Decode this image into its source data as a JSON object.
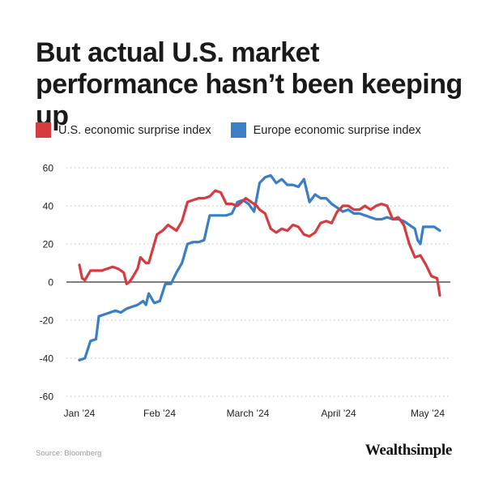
{
  "title": "But actual U.S. market performance hasn’t been keeping up",
  "source": "Source: Bloomberg",
  "brand": "Wealthsimple",
  "colors": {
    "us": "#d63b3f",
    "europe": "#3a7ec3",
    "grid": "#bdbdbd",
    "zero": "#333333"
  },
  "legend": [
    {
      "label": "U.S. economic surprise index",
      "color": "#d63b3f"
    },
    {
      "label": "Europe economic surprise index",
      "color": "#3a7ec3"
    }
  ],
  "chart_data": {
    "type": "line",
    "title": "But actual U.S. market performance hasn’t been keeping up",
    "xlabel": "",
    "ylabel": "",
    "x_ticks": [
      "Jan ’24",
      "Feb ’24",
      "March ’24",
      "April ’24",
      "May ’24"
    ],
    "x_tick_days": [
      0,
      31,
      60,
      91,
      121
    ],
    "xlim": [
      "2024-01-01",
      "2024-05-10"
    ],
    "ylim": [
      -60,
      60
    ],
    "y_ticks": [
      60,
      40,
      20,
      0,
      -20,
      -40,
      -60
    ],
    "grid": true,
    "legend_position": "top-left",
    "series": [
      {
        "name": "U.S. economic surprise index",
        "color": "#d63b3f",
        "points": [
          [
            "2024-01-01",
            9
          ],
          [
            "2024-01-02",
            2
          ],
          [
            "2024-01-03",
            1
          ],
          [
            "2024-01-05",
            6
          ],
          [
            "2024-01-07",
            6
          ],
          [
            "2024-01-09",
            6
          ],
          [
            "2024-01-11",
            7
          ],
          [
            "2024-01-13",
            8
          ],
          [
            "2024-01-15",
            7
          ],
          [
            "2024-01-17",
            5
          ],
          [
            "2024-01-18",
            -1
          ],
          [
            "2024-01-19",
            0
          ],
          [
            "2024-01-20",
            2
          ],
          [
            "2024-01-22",
            7
          ],
          [
            "2024-01-23",
            13
          ],
          [
            "2024-01-25",
            10
          ],
          [
            "2024-01-26",
            10
          ],
          [
            "2024-01-27",
            15
          ],
          [
            "2024-01-29",
            25
          ],
          [
            "2024-01-31",
            27
          ],
          [
            "2024-02-02",
            30
          ],
          [
            "2024-02-04",
            28
          ],
          [
            "2024-02-05",
            27
          ],
          [
            "2024-02-07",
            32
          ],
          [
            "2024-02-09",
            42
          ],
          [
            "2024-02-11",
            43
          ],
          [
            "2024-02-13",
            44
          ],
          [
            "2024-02-15",
            44
          ],
          [
            "2024-02-17",
            45
          ],
          [
            "2024-02-19",
            48
          ],
          [
            "2024-02-21",
            47
          ],
          [
            "2024-02-23",
            41
          ],
          [
            "2024-02-25",
            41
          ],
          [
            "2024-02-27",
            40
          ],
          [
            "2024-03-01",
            44
          ],
          [
            "2024-03-03",
            42
          ],
          [
            "2024-03-05",
            40
          ],
          [
            "2024-03-06",
            38
          ],
          [
            "2024-03-08",
            36
          ],
          [
            "2024-03-10",
            28
          ],
          [
            "2024-03-12",
            26
          ],
          [
            "2024-03-14",
            28
          ],
          [
            "2024-03-16",
            27
          ],
          [
            "2024-03-18",
            30
          ],
          [
            "2024-03-20",
            29
          ],
          [
            "2024-03-22",
            25
          ],
          [
            "2024-03-24",
            24
          ],
          [
            "2024-03-26",
            26
          ],
          [
            "2024-03-28",
            31
          ],
          [
            "2024-03-30",
            32
          ],
          [
            "2024-04-01",
            31
          ],
          [
            "2024-04-03",
            37
          ],
          [
            "2024-04-05",
            40
          ],
          [
            "2024-04-07",
            40
          ],
          [
            "2024-04-09",
            38
          ],
          [
            "2024-04-11",
            38
          ],
          [
            "2024-04-13",
            40
          ],
          [
            "2024-04-15",
            38
          ],
          [
            "2024-04-17",
            40
          ],
          [
            "2024-04-19",
            41
          ],
          [
            "2024-04-21",
            40
          ],
          [
            "2024-04-23",
            33
          ],
          [
            "2024-04-25",
            34
          ],
          [
            "2024-04-27",
            30
          ],
          [
            "2024-04-29",
            20
          ],
          [
            "2024-05-01",
            13
          ],
          [
            "2024-05-03",
            14
          ],
          [
            "2024-05-05",
            9
          ],
          [
            "2024-05-07",
            3
          ],
          [
            "2024-05-09",
            2
          ],
          [
            "2024-05-10",
            -7
          ]
        ]
      },
      {
        "name": "Europe economic surprise index",
        "color": "#3a7ec3",
        "points": [
          [
            "2024-01-01",
            -41
          ],
          [
            "2024-01-03",
            -40
          ],
          [
            "2024-01-05",
            -31
          ],
          [
            "2024-01-07",
            -30
          ],
          [
            "2024-01-08",
            -18
          ],
          [
            "2024-01-10",
            -17
          ],
          [
            "2024-01-12",
            -16
          ],
          [
            "2024-01-14",
            -15
          ],
          [
            "2024-01-16",
            -16
          ],
          [
            "2024-01-18",
            -14
          ],
          [
            "2024-01-20",
            -13
          ],
          [
            "2024-01-22",
            -12
          ],
          [
            "2024-01-24",
            -10
          ],
          [
            "2024-01-25",
            -12
          ],
          [
            "2024-01-26",
            -6
          ],
          [
            "2024-01-28",
            -11
          ],
          [
            "2024-01-30",
            -10
          ],
          [
            "2024-02-01",
            -1
          ],
          [
            "2024-02-03",
            -1
          ],
          [
            "2024-02-05",
            5
          ],
          [
            "2024-02-07",
            10
          ],
          [
            "2024-02-09",
            20
          ],
          [
            "2024-02-11",
            21
          ],
          [
            "2024-02-13",
            21
          ],
          [
            "2024-02-15",
            22
          ],
          [
            "2024-02-17",
            35
          ],
          [
            "2024-02-19",
            35
          ],
          [
            "2024-02-21",
            35
          ],
          [
            "2024-02-23",
            35
          ],
          [
            "2024-02-25",
            36
          ],
          [
            "2024-02-27",
            42
          ],
          [
            "2024-02-29",
            43
          ],
          [
            "2024-03-02",
            41
          ],
          [
            "2024-03-04",
            37
          ],
          [
            "2024-03-06",
            52
          ],
          [
            "2024-03-08",
            55
          ],
          [
            "2024-03-10",
            56
          ],
          [
            "2024-03-12",
            52
          ],
          [
            "2024-03-14",
            54
          ],
          [
            "2024-03-16",
            51
          ],
          [
            "2024-03-18",
            51
          ],
          [
            "2024-03-20",
            50
          ],
          [
            "2024-03-22",
            54
          ],
          [
            "2024-03-24",
            42
          ],
          [
            "2024-03-26",
            46
          ],
          [
            "2024-03-28",
            44
          ],
          [
            "2024-03-30",
            44
          ],
          [
            "2024-04-01",
            41
          ],
          [
            "2024-04-03",
            39
          ],
          [
            "2024-04-05",
            37
          ],
          [
            "2024-04-07",
            38
          ],
          [
            "2024-04-09",
            36
          ],
          [
            "2024-04-11",
            36
          ],
          [
            "2024-04-13",
            35
          ],
          [
            "2024-04-15",
            34
          ],
          [
            "2024-04-17",
            33
          ],
          [
            "2024-04-19",
            33
          ],
          [
            "2024-04-21",
            34
          ],
          [
            "2024-04-23",
            33
          ],
          [
            "2024-04-25",
            33
          ],
          [
            "2024-04-27",
            32
          ],
          [
            "2024-04-29",
            30
          ],
          [
            "2024-05-01",
            28
          ],
          [
            "2024-05-02",
            22
          ],
          [
            "2024-05-03",
            20
          ],
          [
            "2024-05-04",
            29
          ],
          [
            "2024-05-06",
            29
          ],
          [
            "2024-05-08",
            29
          ],
          [
            "2024-05-10",
            27
          ]
        ]
      }
    ]
  }
}
